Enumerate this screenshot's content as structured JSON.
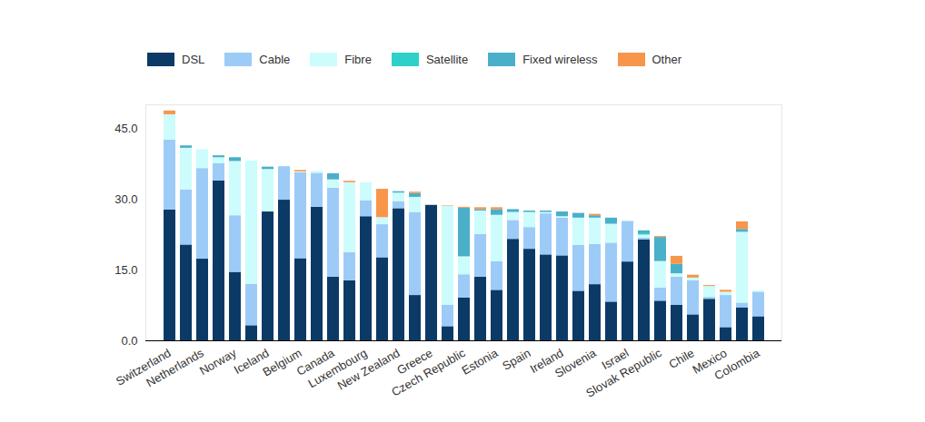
{
  "chart_data": {
    "type": "bar",
    "stacked": true,
    "legend": "top",
    "categories": [
      "Switzerland",
      null,
      "Netherlands",
      null,
      "Norway",
      null,
      "Iceland",
      null,
      "Belgium",
      null,
      "Canada",
      null,
      "Luxembourg",
      null,
      "New Zealand",
      null,
      "Greece",
      null,
      "Czech Republic",
      null,
      "Estonia",
      null,
      "Spain",
      null,
      "Ireland",
      null,
      "Slovenia",
      null,
      "Israel",
      null,
      "Slovak Republic",
      null,
      "Chile",
      null,
      "Mexico",
      null,
      "Colombia"
    ],
    "ylim": [
      0,
      50
    ],
    "yticks": [
      {
        "value": 0,
        "label": "0.0"
      },
      {
        "value": 15,
        "label": "15.0"
      },
      {
        "value": 30,
        "label": "30.0"
      },
      {
        "value": 45,
        "label": "45.0"
      }
    ],
    "series": [
      {
        "name": "DSL",
        "color": "#0b3a67",
        "values": [
          27.7,
          20.3,
          17.3,
          33.9,
          14.5,
          3.2,
          27.3,
          29.8,
          17.4,
          28.3,
          13.5,
          12.7,
          26.3,
          17.6,
          28.0,
          9.6,
          28.7,
          3.0,
          9.1,
          13.5,
          10.7,
          21.5,
          19.4,
          18.2,
          18.0,
          10.5,
          11.9,
          8.2,
          16.7,
          21.4,
          8.4,
          7.5,
          5.5,
          8.8,
          2.8,
          7.0,
          5.1
        ]
      },
      {
        "name": "Cable",
        "color": "#9dcbf7",
        "values": [
          14.8,
          11.7,
          19.2,
          3.6,
          12.0,
          8.8,
          0,
          7.1,
          18.2,
          7.2,
          18.8,
          6.0,
          3.4,
          7.0,
          1.5,
          17.6,
          0,
          4.5,
          4.9,
          9.0,
          6.1,
          4.0,
          4.6,
          8.7,
          8.0,
          9.7,
          8.5,
          12.5,
          8.6,
          0.4,
          2.8,
          6.0,
          7.2,
          0.4,
          6.8,
          1.0,
          5.2
        ]
      },
      {
        "name": "Fibre",
        "color": "#ccfcfc",
        "values": [
          5.4,
          8.8,
          4.0,
          1.3,
          11.5,
          26.1,
          9.0,
          0,
          0.2,
          0.4,
          1.8,
          14.8,
          3.8,
          1.5,
          1.8,
          3.2,
          0,
          21.0,
          3.8,
          5.0,
          9.8,
          1.7,
          3.2,
          0.3,
          0.3,
          5.8,
          5.6,
          4.0,
          0,
          0.6,
          5.6,
          0.7,
          0.6,
          2.3,
          0.7,
          15.0,
          0.3
        ]
      },
      {
        "name": "Satellite",
        "color": "#2ed1c8",
        "values": [
          0,
          0,
          0,
          0,
          0,
          0,
          0,
          0,
          0,
          0,
          0,
          0,
          0,
          0,
          0,
          0,
          0,
          0,
          0,
          0,
          0,
          0,
          0,
          0,
          0,
          0,
          0,
          0,
          0,
          0.3,
          0,
          0,
          0,
          0,
          0,
          0,
          0
        ]
      },
      {
        "name": "Fixed wireless",
        "color": "#4aafc9",
        "values": [
          0,
          0.5,
          0,
          0.4,
          0.8,
          0,
          0.5,
          0,
          0,
          0,
          1.3,
          0,
          0,
          0,
          0.3,
          0.8,
          0,
          0,
          10.3,
          0.3,
          1.2,
          0.6,
          0.3,
          0.3,
          1.0,
          1.0,
          0.5,
          1.3,
          0,
          0.6,
          5.1,
          2.0,
          0,
          0,
          0,
          0.6,
          0
        ]
      },
      {
        "name": "Other",
        "color": "#f7964a",
        "values": [
          0.8,
          0,
          0,
          0,
          0,
          0,
          0,
          0,
          0.3,
          0,
          0,
          0.3,
          0,
          6.0,
          0,
          0.3,
          0,
          0.1,
          0.2,
          0.4,
          0.4,
          0,
          0,
          0,
          0,
          0,
          0.3,
          0,
          0,
          0,
          0.2,
          1.7,
          0.6,
          0.2,
          0.4,
          1.6,
          0
        ]
      }
    ]
  }
}
